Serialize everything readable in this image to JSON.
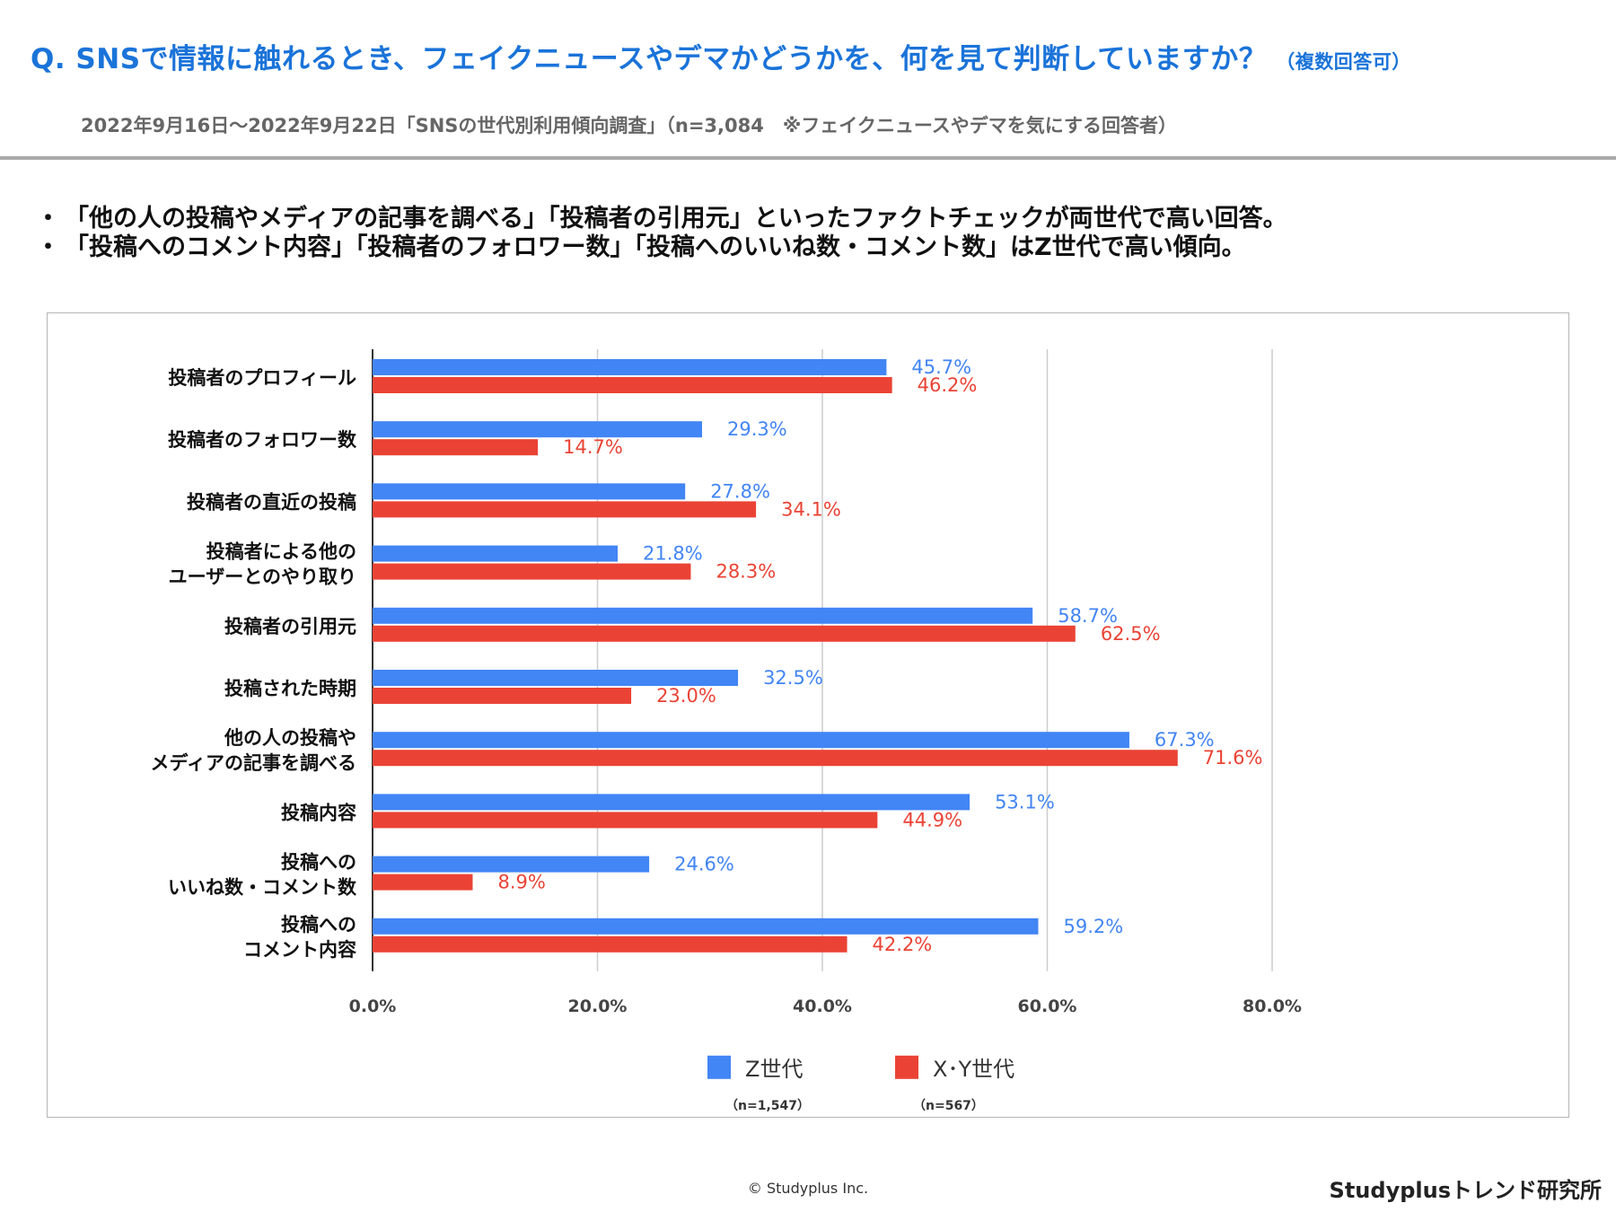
{
  "header": {
    "title": "Q. SNSで情報に触れるとき、フェイクニュースやデマかどうかを、何を見て判断していますか？",
    "title_note": "（複数回答可）",
    "subtitle": "2022年9月16日～2022年9月22日「SNSの世代別利用傾向調査」（n=3,084　※フェイクニュースやデマを気にする回答者）"
  },
  "bullets": [
    {
      "mark": "・",
      "text": "「他の人の投稿やメディアの記事を調べる」「投稿者の引用元」といったファクトチェックが両世代で高い回答。"
    },
    {
      "mark": "・",
      "text": "「投稿へのコメント内容」「投稿者のフォロワー数」「投稿へのいいね数・コメント数」はZ世代で高い傾向。"
    }
  ],
  "chart_data": {
    "type": "bar",
    "orientation": "horizontal",
    "categories": [
      [
        "投稿者のプロフィール"
      ],
      [
        "投稿者のフォロワー数"
      ],
      [
        "投稿者の直近の投稿"
      ],
      [
        "投稿者による他の",
        "ユーザーとのやり取り"
      ],
      [
        "投稿者の引用元"
      ],
      [
        "投稿された時期"
      ],
      [
        "他の人の投稿や",
        "メディアの記事を調べる"
      ],
      [
        "投稿内容"
      ],
      [
        "投稿への",
        "いいね数・コメント数"
      ],
      [
        "投稿への",
        "コメント内容"
      ]
    ],
    "series": [
      {
        "name": "Z世代",
        "sub": "（n=1,547）",
        "color": "#4285f4",
        "values": [
          45.7,
          29.3,
          27.8,
          21.8,
          58.7,
          32.5,
          67.3,
          53.1,
          24.6,
          59.2
        ]
      },
      {
        "name": "X･Y世代",
        "sub": "（n=567）",
        "color": "#ea4335",
        "values": [
          46.2,
          14.7,
          34.1,
          28.3,
          62.5,
          23.0,
          71.6,
          44.9,
          8.9,
          42.2
        ]
      }
    ],
    "xlim": [
      0,
      80
    ],
    "xticks": [
      0,
      20,
      40,
      60,
      80
    ],
    "tick_format": "%",
    "grid": true,
    "legend_position": "bottom"
  },
  "footer": {
    "copyright": "© Studyplus Inc.",
    "brand": "Studyplusトレンド研究所"
  }
}
